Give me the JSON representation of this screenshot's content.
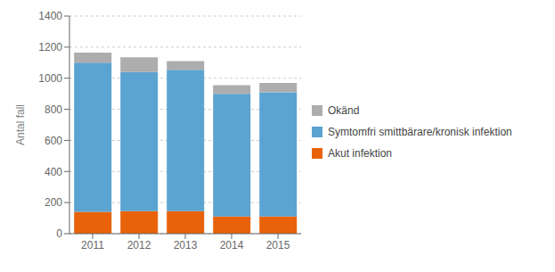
{
  "chart_data": {
    "type": "bar",
    "categories": [
      "2011",
      "2012",
      "2013",
      "2014",
      "2015"
    ],
    "series": [
      {
        "name": "Akut infektion",
        "color": "#E8620A",
        "values": [
          140,
          145,
          145,
          110,
          110
        ]
      },
      {
        "name": "Symtomfri smittbärare/kronisk infektion",
        "color": "#5BA3D0",
        "values": [
          960,
          895,
          910,
          790,
          800
        ]
      },
      {
        "name": "Okänd",
        "color": "#ADADAD",
        "values": [
          65,
          95,
          55,
          55,
          60
        ]
      }
    ],
    "stacked": true,
    "ylabel": "Antal fall",
    "ylim": [
      0,
      1400
    ],
    "yticks": [
      0,
      200,
      400,
      600,
      800,
      1000,
      1200,
      1400
    ],
    "grid": true,
    "legend": "right"
  }
}
